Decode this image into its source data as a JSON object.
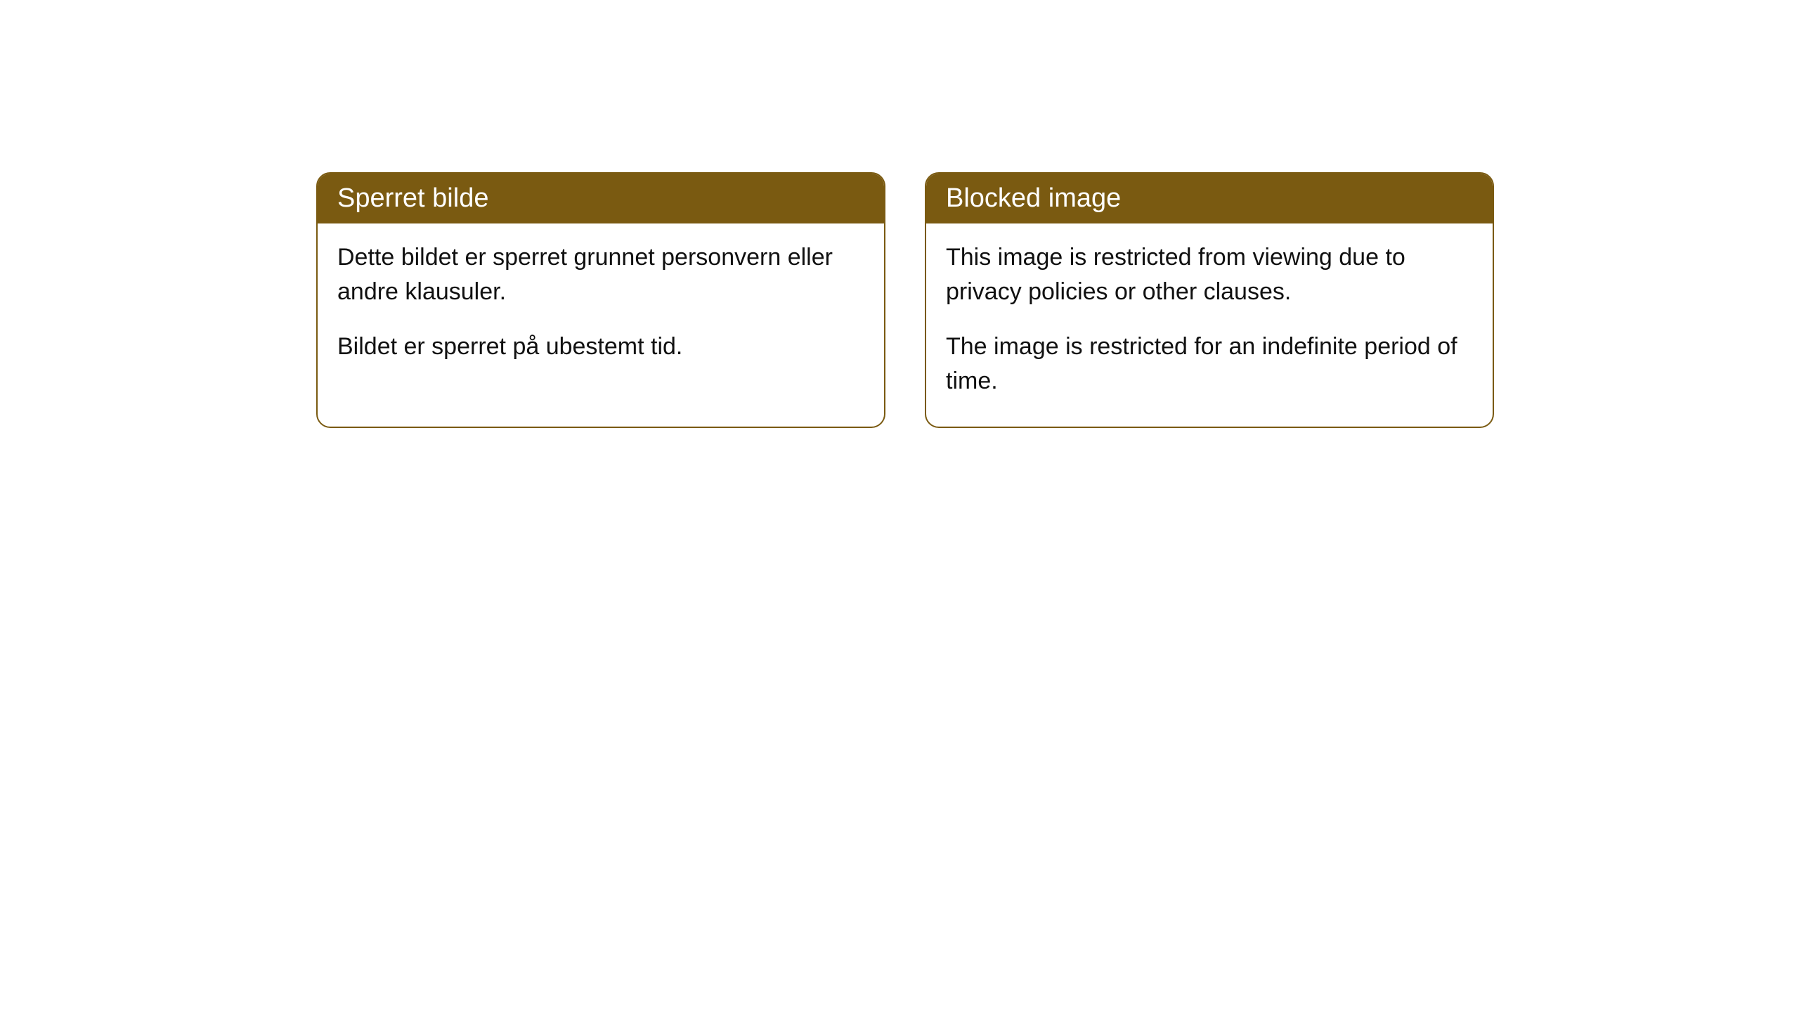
{
  "cards": [
    {
      "title": "Sperret bilde",
      "paragraph1": "Dette bildet er sperret grunnet personvern eller andre klausuler.",
      "paragraph2": "Bildet er sperret på ubestemt tid."
    },
    {
      "title": "Blocked image",
      "paragraph1": "This image is restricted from viewing due to privacy policies or other clauses.",
      "paragraph2": "The image is restricted for an indefinite period of time."
    }
  ],
  "style": {
    "header_bg_color": "#7a5a11",
    "header_text_color": "#ffffff",
    "border_color": "#7a5a11",
    "body_bg_color": "#ffffff",
    "body_text_color": "#111111",
    "border_radius": 20,
    "title_fontsize": 38,
    "body_fontsize": 34
  }
}
